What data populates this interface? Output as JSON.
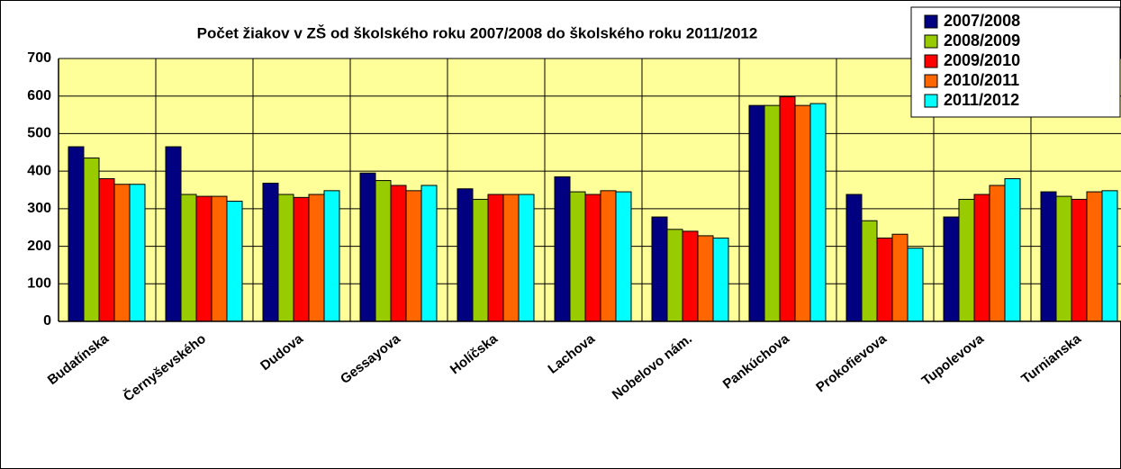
{
  "chart_data": {
    "type": "bar",
    "title": "Počet žiakov v ZŠ od školského roku 2007/2008 do školského roku 2011/2012",
    "categories": [
      "Budatínska",
      "Černyševského",
      "Dudova",
      "Gessayova",
      "Holíčska",
      "Lachova",
      "Nobelovo nám.",
      "Pankúchova",
      "Prokofievova",
      "Tupolevova",
      "Turnianska"
    ],
    "series": [
      {
        "name": "2007/2008",
        "color": "#000080",
        "values": [
          465,
          465,
          368,
          395,
          353,
          385,
          278,
          575,
          338,
          278,
          345
        ]
      },
      {
        "name": "2008/2009",
        "color": "#99cc00",
        "values": [
          435,
          338,
          338,
          375,
          325,
          345,
          245,
          575,
          268,
          325,
          333
        ]
      },
      {
        "name": "2009/2010",
        "color": "#ff0000",
        "values": [
          380,
          333,
          330,
          362,
          338,
          338,
          240,
          598,
          222,
          338,
          325
        ]
      },
      {
        "name": "2010/2011",
        "color": "#ff6600",
        "values": [
          365,
          333,
          338,
          348,
          338,
          348,
          228,
          575,
          232,
          362,
          345
        ]
      },
      {
        "name": "2011/2012",
        "color": "#00ffff",
        "values": [
          365,
          320,
          348,
          362,
          338,
          345,
          222,
          580,
          195,
          380,
          348
        ]
      }
    ],
    "ylim": [
      0,
      700
    ],
    "yticks": [
      0,
      100,
      200,
      300,
      400,
      500,
      600,
      700
    ],
    "grid": true,
    "legend": "top-right"
  }
}
